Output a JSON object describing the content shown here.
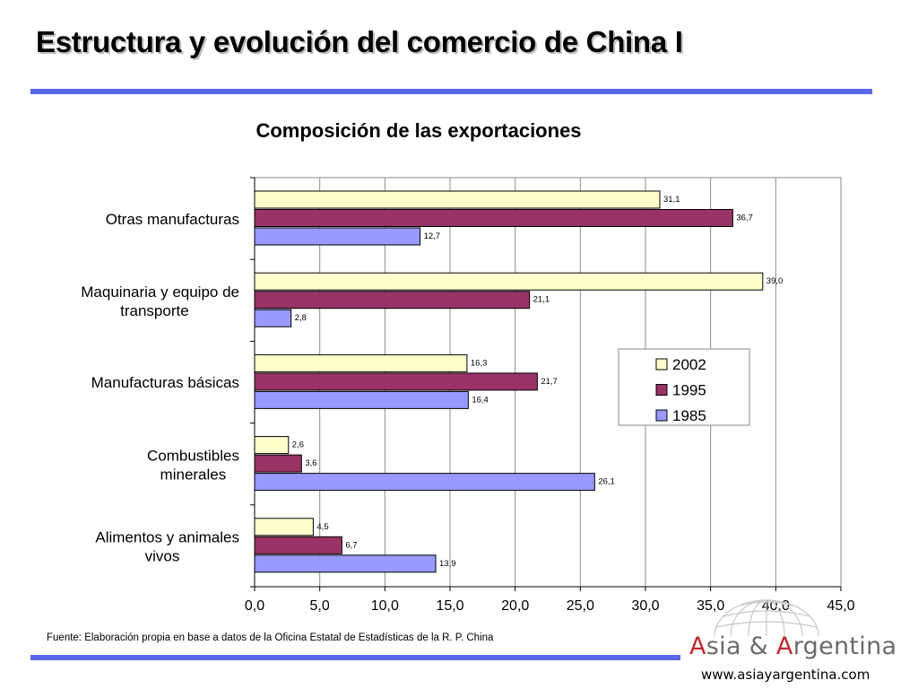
{
  "slide": {
    "title": "Estructura y evolución del comercio de China I",
    "source": "Fuente: Elaboración propia en base a datos de la Oficina Estatal de Estadísticas de la R. P. China"
  },
  "logo": {
    "name_a_initial": "A",
    "name_a_rest": "sia & ",
    "name_b_initial": "A",
    "name_b_rest": "rgentina",
    "url": "www.asiayargentina.com"
  },
  "colors": {
    "accent_rule": "#5b67e4",
    "series_2002": "#ffffcc",
    "series_1995": "#993366",
    "series_1985": "#9999ff"
  },
  "chart_data": {
    "type": "bar",
    "orientation": "horizontal",
    "title": "Composición de las exportaciones",
    "categories": [
      "Otras manufacturas",
      "Maquinaria y equipo de transporte",
      "Manufacturas básicas",
      "Combustibles minerales",
      "Alimentos y animales vivos"
    ],
    "series": [
      {
        "name": "2002",
        "color": "#ffffcc",
        "values": [
          31.1,
          39.0,
          16.3,
          2.6,
          4.5
        ]
      },
      {
        "name": "1995",
        "color": "#993366",
        "values": [
          36.7,
          21.1,
          21.7,
          3.6,
          6.7
        ]
      },
      {
        "name": "1985",
        "color": "#9999ff",
        "values": [
          12.7,
          2.8,
          16.4,
          26.1,
          13.9
        ]
      }
    ],
    "xlim": [
      0,
      45
    ],
    "xticks": [
      0,
      5,
      10,
      15,
      20,
      25,
      30,
      35,
      40,
      45
    ],
    "value_format": "one decimal, comma separator",
    "grid": "vertical",
    "legend": "right"
  }
}
